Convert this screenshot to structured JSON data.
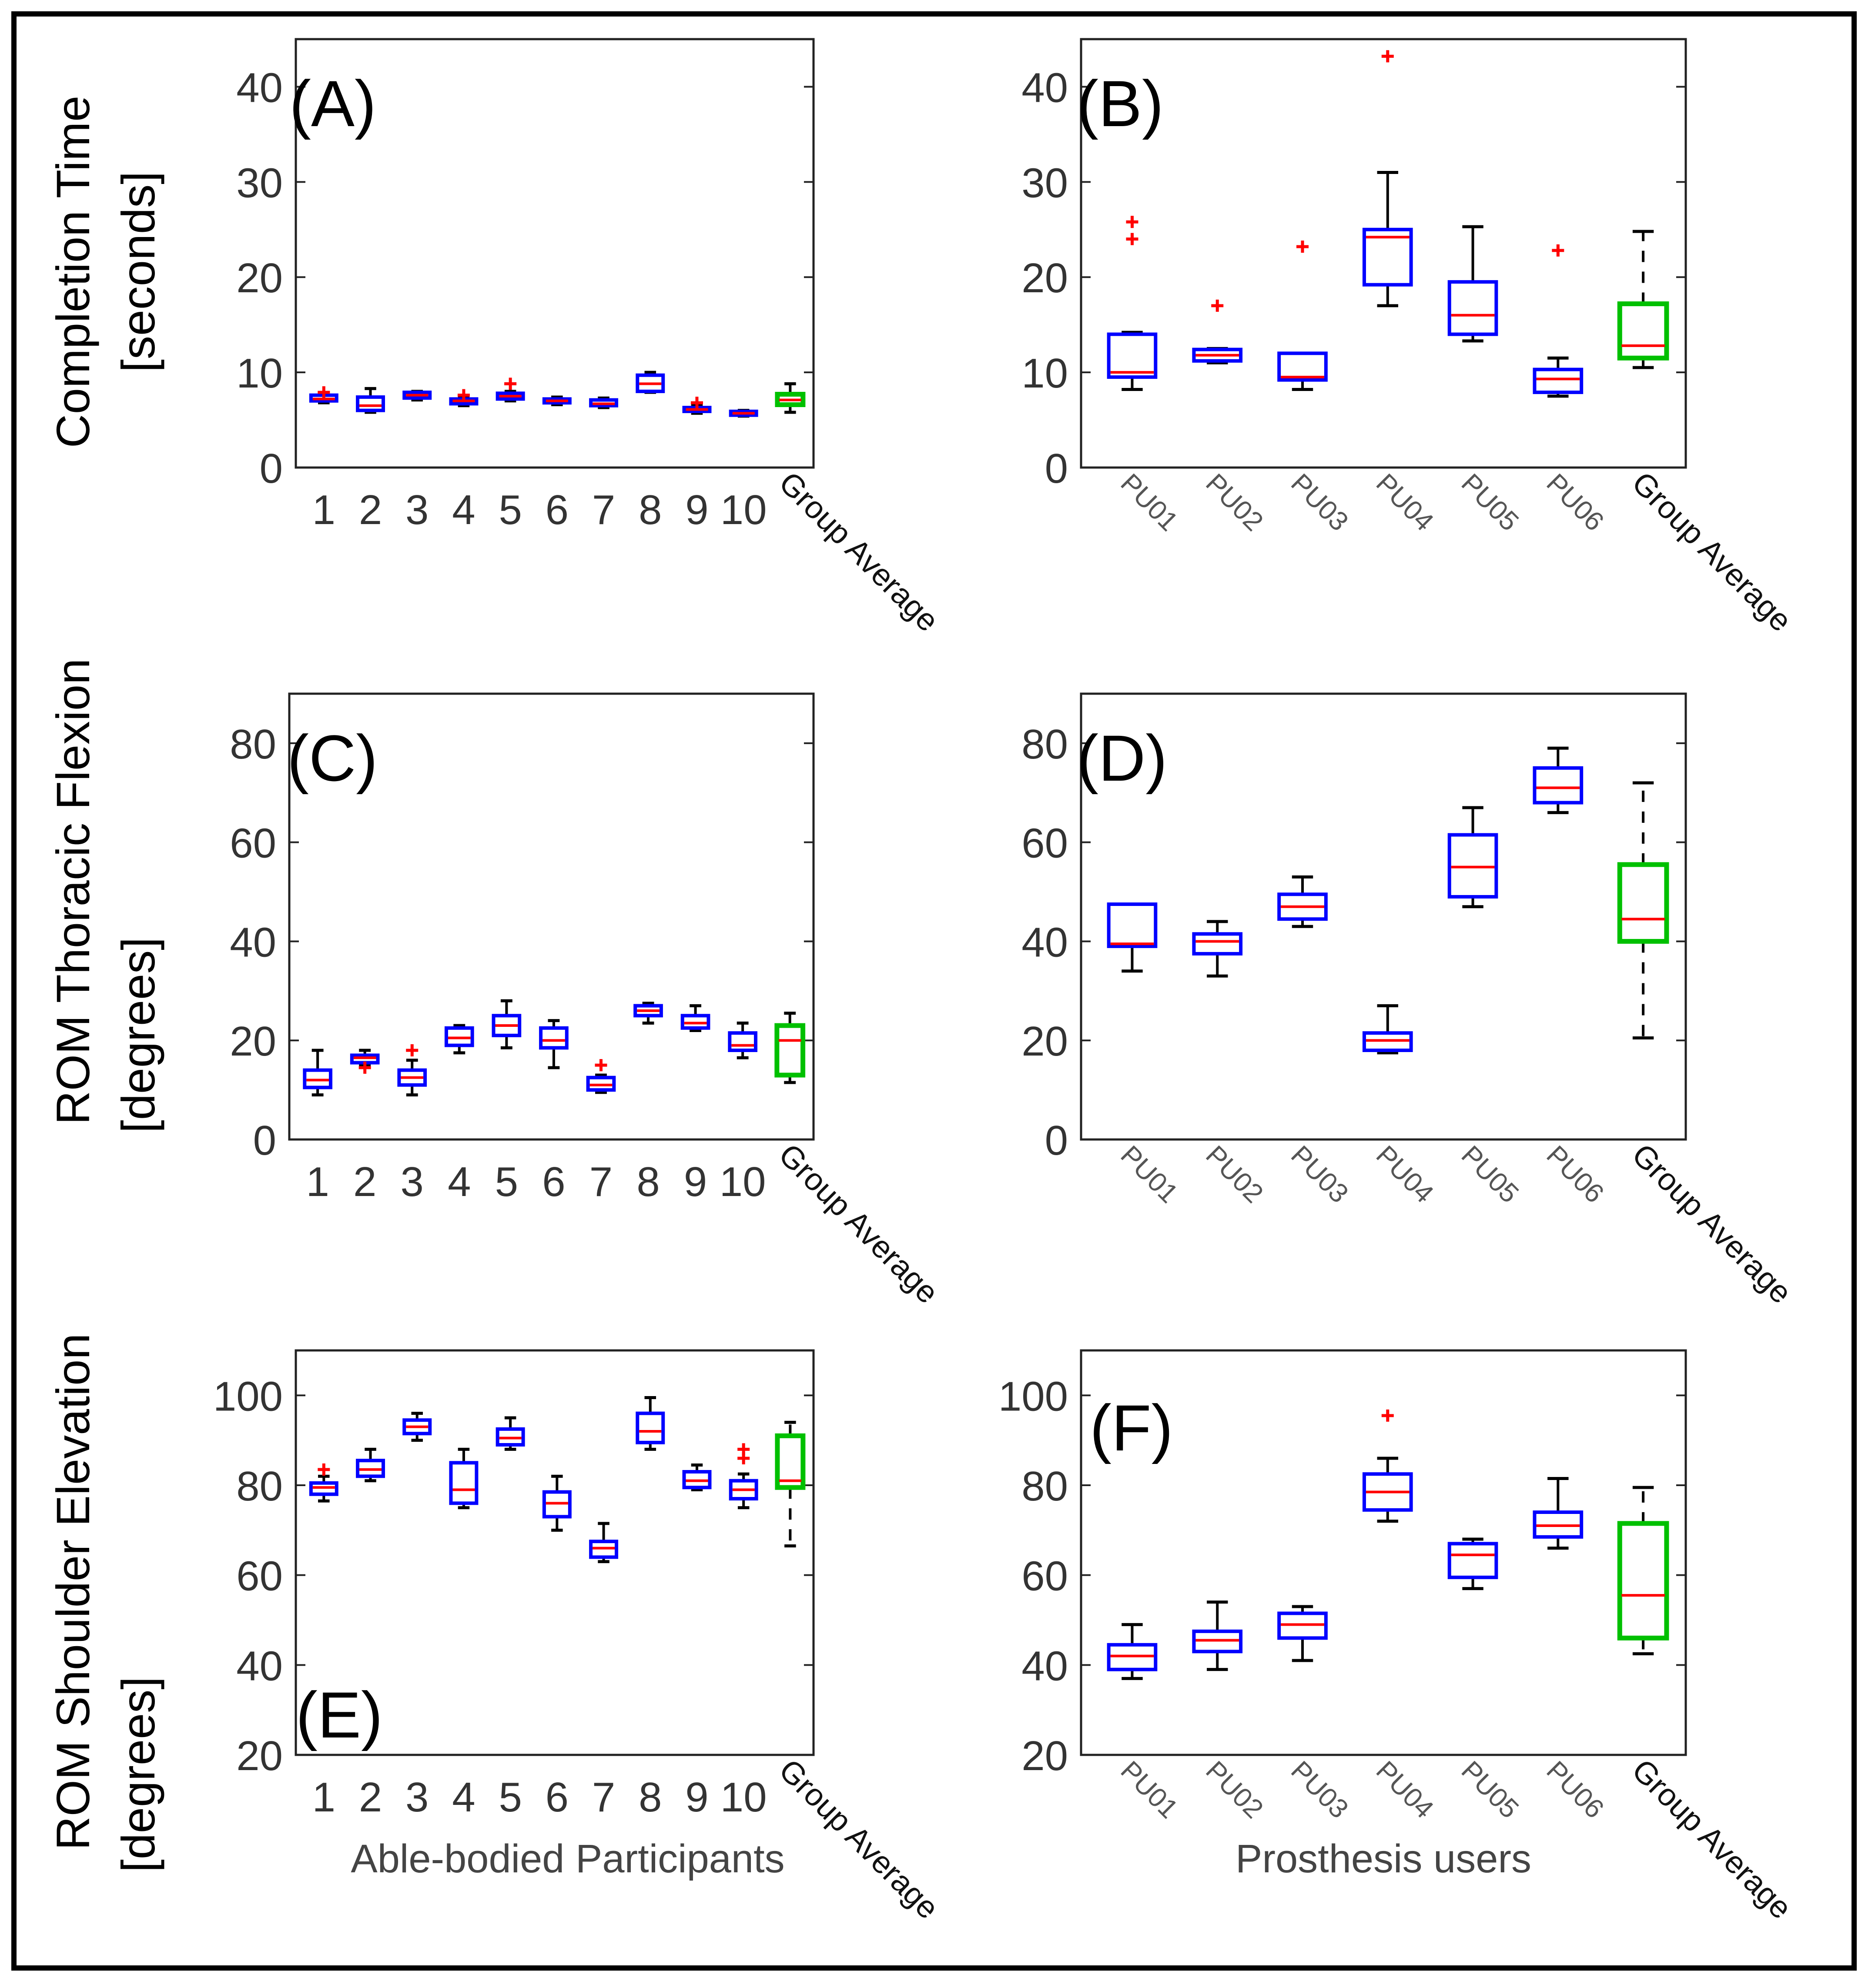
{
  "ylabels": {
    "row1": [
      "Completion Time",
      "[seconds]"
    ],
    "row2": [
      "ROM Thoracic Flexion",
      "[degrees]"
    ],
    "row3": [
      "ROM Shoulder Elevation",
      "[degrees]"
    ]
  },
  "xlabels": {
    "left": "Able-bodied Participants",
    "right": "Prosthesis users"
  },
  "colors": {
    "box": "#0000ff",
    "median": "#ff0000",
    "group_box": "#00c000",
    "whisker": "#000000",
    "outlier": "#ff0000"
  },
  "chart_data": [
    {
      "panel": "(A)",
      "type": "box",
      "ylim": [
        0,
        45
      ],
      "yticks": [
        0,
        10,
        20,
        30,
        40
      ],
      "categories": [
        "1",
        "2",
        "3",
        "4",
        "5",
        "6",
        "7",
        "8",
        "9",
        "10",
        "Group Average"
      ],
      "boxes": [
        {
          "wlo": 6.8,
          "q1": 7.0,
          "med": 7.2,
          "q3": 7.6,
          "whi": 7.8,
          "out": [
            7.9
          ]
        },
        {
          "wlo": 5.8,
          "q1": 6.0,
          "med": 6.5,
          "q3": 7.4,
          "whi": 8.3,
          "out": []
        },
        {
          "wlo": 7.1,
          "q1": 7.3,
          "med": 7.6,
          "q3": 7.9,
          "whi": 8.0,
          "out": []
        },
        {
          "wlo": 6.5,
          "q1": 6.7,
          "med": 7.0,
          "q3": 7.2,
          "whi": 7.4,
          "out": [
            7.6
          ]
        },
        {
          "wlo": 7.0,
          "q1": 7.2,
          "med": 7.5,
          "q3": 7.8,
          "whi": 8.0,
          "out": [
            8.8
          ]
        },
        {
          "wlo": 6.6,
          "q1": 6.8,
          "med": 7.0,
          "q3": 7.2,
          "whi": 7.4,
          "out": []
        },
        {
          "wlo": 6.3,
          "q1": 6.5,
          "med": 6.7,
          "q3": 7.1,
          "whi": 7.3,
          "out": []
        },
        {
          "wlo": 7.9,
          "q1": 8.0,
          "med": 8.8,
          "q3": 9.7,
          "whi": 10.0,
          "out": []
        },
        {
          "wlo": 5.7,
          "q1": 5.9,
          "med": 6.1,
          "q3": 6.3,
          "whi": 6.5,
          "out": [
            6.8
          ]
        },
        {
          "wlo": 5.4,
          "q1": 5.5,
          "med": 5.7,
          "q3": 5.9,
          "whi": 6.0,
          "out": []
        },
        {
          "wlo": 5.8,
          "q1": 6.6,
          "med": 7.1,
          "q3": 7.7,
          "whi": 8.8,
          "out": [],
          "group": true
        }
      ]
    },
    {
      "panel": "(B)",
      "type": "box",
      "ylim": [
        0,
        45
      ],
      "yticks": [
        0,
        10,
        20,
        30,
        40
      ],
      "categories": [
        "PU01",
        "PU02",
        "PU03",
        "PU04",
        "PU05",
        "PU06",
        "Group Average"
      ],
      "boxes": [
        {
          "wlo": 8.2,
          "q1": 9.5,
          "med": 10.0,
          "q3": 14.0,
          "whi": 14.2,
          "out": [
            24.0,
            25.8
          ]
        },
        {
          "wlo": 11.0,
          "q1": 11.2,
          "med": 11.8,
          "q3": 12.4,
          "whi": 12.5,
          "out": [
            17.0
          ]
        },
        {
          "wlo": 8.2,
          "q1": 9.2,
          "med": 9.5,
          "q3": 12.0,
          "whi": 12.0,
          "out": [
            23.2
          ]
        },
        {
          "wlo": 17.0,
          "q1": 19.2,
          "med": 24.2,
          "q3": 25.0,
          "whi": 31.0,
          "out": [
            43.2
          ]
        },
        {
          "wlo": 13.3,
          "q1": 14.0,
          "med": 16.0,
          "q3": 19.5,
          "whi": 25.3,
          "out": []
        },
        {
          "wlo": 7.5,
          "q1": 7.9,
          "med": 9.3,
          "q3": 10.3,
          "whi": 11.5,
          "out": [
            22.8
          ]
        },
        {
          "wlo": 10.5,
          "q1": 11.5,
          "med": 12.8,
          "q3": 17.2,
          "whi": 24.8,
          "out": [],
          "group": true
        }
      ]
    },
    {
      "panel": "(C)",
      "type": "box",
      "ylim": [
        0,
        90
      ],
      "yticks": [
        0,
        20,
        40,
        60,
        80
      ],
      "categories": [
        "1",
        "2",
        "3",
        "4",
        "5",
        "6",
        "7",
        "8",
        "9",
        "10",
        "Group Average"
      ],
      "boxes": [
        {
          "wlo": 9.0,
          "q1": 10.5,
          "med": 12.0,
          "q3": 14.0,
          "whi": 18.0,
          "out": []
        },
        {
          "wlo": 15.0,
          "q1": 15.5,
          "med": 16.5,
          "q3": 17.0,
          "whi": 18.0,
          "out": [
            14.5
          ]
        },
        {
          "wlo": 9.0,
          "q1": 11.0,
          "med": 12.5,
          "q3": 14.0,
          "whi": 16.0,
          "out": [
            18.0
          ]
        },
        {
          "wlo": 17.5,
          "q1": 19.0,
          "med": 20.5,
          "q3": 22.5,
          "whi": 23.0,
          "out": []
        },
        {
          "wlo": 18.5,
          "q1": 21.0,
          "med": 23.0,
          "q3": 25.0,
          "whi": 28.0,
          "out": []
        },
        {
          "wlo": 14.5,
          "q1": 18.5,
          "med": 20.0,
          "q3": 22.5,
          "whi": 24.0,
          "out": []
        },
        {
          "wlo": 9.5,
          "q1": 10.0,
          "med": 11.0,
          "q3": 12.5,
          "whi": 13.0,
          "out": [
            15.0
          ]
        },
        {
          "wlo": 23.5,
          "q1": 25.0,
          "med": 26.0,
          "q3": 27.0,
          "whi": 27.5,
          "out": []
        },
        {
          "wlo": 22.0,
          "q1": 22.5,
          "med": 23.5,
          "q3": 25.0,
          "whi": 27.0,
          "out": []
        },
        {
          "wlo": 16.5,
          "q1": 18.0,
          "med": 19.0,
          "q3": 21.5,
          "whi": 23.5,
          "out": []
        },
        {
          "wlo": 11.5,
          "q1": 13.0,
          "med": 20.0,
          "q3": 23.0,
          "whi": 25.5,
          "out": [],
          "group": true
        }
      ]
    },
    {
      "panel": "(D)",
      "type": "box",
      "ylim": [
        0,
        90
      ],
      "yticks": [
        0,
        20,
        40,
        60,
        80
      ],
      "categories": [
        "PU01",
        "PU02",
        "PU03",
        "PU04",
        "PU05",
        "PU06",
        "Group Average"
      ],
      "boxes": [
        {
          "wlo": 34.0,
          "q1": 39.0,
          "med": 39.5,
          "q3": 47.5,
          "whi": 47.5,
          "out": []
        },
        {
          "wlo": 33.0,
          "q1": 37.5,
          "med": 40.0,
          "q3": 41.5,
          "whi": 44.0,
          "out": []
        },
        {
          "wlo": 43.0,
          "q1": 44.5,
          "med": 47.0,
          "q3": 49.5,
          "whi": 53.0,
          "out": []
        },
        {
          "wlo": 17.5,
          "q1": 18.0,
          "med": 20.0,
          "q3": 21.5,
          "whi": 27.0,
          "out": []
        },
        {
          "wlo": 47.0,
          "q1": 49.0,
          "med": 55.0,
          "q3": 61.5,
          "whi": 67.0,
          "out": []
        },
        {
          "wlo": 66.0,
          "q1": 68.0,
          "med": 71.0,
          "q3": 75.0,
          "whi": 79.0,
          "out": []
        },
        {
          "wlo": 20.5,
          "q1": 40.0,
          "med": 44.5,
          "q3": 55.5,
          "whi": 72.0,
          "out": [],
          "group": true
        }
      ]
    },
    {
      "panel": "(E)",
      "type": "box",
      "ylim": [
        20,
        110
      ],
      "yticks": [
        20,
        40,
        60,
        80,
        100
      ],
      "categories": [
        "1",
        "2",
        "3",
        "4",
        "5",
        "6",
        "7",
        "8",
        "9",
        "10",
        "Group Average"
      ],
      "boxes": [
        {
          "wlo": 76.5,
          "q1": 78.0,
          "med": 79.5,
          "q3": 80.5,
          "whi": 82.0,
          "out": [
            83.5
          ]
        },
        {
          "wlo": 81.0,
          "q1": 82.0,
          "med": 83.5,
          "q3": 85.5,
          "whi": 88.0,
          "out": []
        },
        {
          "wlo": 90.0,
          "q1": 91.5,
          "med": 93.0,
          "q3": 94.5,
          "whi": 96.0,
          "out": []
        },
        {
          "wlo": 75.0,
          "q1": 76.0,
          "med": 79.0,
          "q3": 85.0,
          "whi": 88.0,
          "out": []
        },
        {
          "wlo": 88.0,
          "q1": 89.0,
          "med": 90.5,
          "q3": 92.5,
          "whi": 95.0,
          "out": []
        },
        {
          "wlo": 70.0,
          "q1": 73.0,
          "med": 76.0,
          "q3": 78.5,
          "whi": 82.0,
          "out": []
        },
        {
          "wlo": 63.0,
          "q1": 64.0,
          "med": 66.0,
          "q3": 67.5,
          "whi": 71.5,
          "out": []
        },
        {
          "wlo": 88.0,
          "q1": 89.5,
          "med": 92.0,
          "q3": 96.0,
          "whi": 99.5,
          "out": []
        },
        {
          "wlo": 79.0,
          "q1": 79.5,
          "med": 81.0,
          "q3": 83.0,
          "whi": 84.5,
          "out": []
        },
        {
          "wlo": 75.0,
          "q1": 77.0,
          "med": 79.0,
          "q3": 81.0,
          "whi": 82.5,
          "out": [
            86.0,
            88.0
          ]
        },
        {
          "wlo": 66.5,
          "q1": 79.5,
          "med": 81.0,
          "q3": 91.0,
          "whi": 94.0,
          "out": [],
          "group": true
        }
      ]
    },
    {
      "panel": "(F)",
      "type": "box",
      "ylim": [
        20,
        110
      ],
      "yticks": [
        20,
        40,
        60,
        80,
        100
      ],
      "categories": [
        "PU01",
        "PU02",
        "PU03",
        "PU04",
        "PU05",
        "PU06",
        "Group Average"
      ],
      "boxes": [
        {
          "wlo": 37.0,
          "q1": 39.0,
          "med": 42.0,
          "q3": 44.5,
          "whi": 49.0,
          "out": []
        },
        {
          "wlo": 39.0,
          "q1": 43.0,
          "med": 45.5,
          "q3": 47.5,
          "whi": 54.0,
          "out": []
        },
        {
          "wlo": 41.0,
          "q1": 46.0,
          "med": 49.0,
          "q3": 51.5,
          "whi": 53.0,
          "out": []
        },
        {
          "wlo": 72.0,
          "q1": 74.5,
          "med": 78.5,
          "q3": 82.5,
          "whi": 86.0,
          "out": [
            95.5
          ]
        },
        {
          "wlo": 57.0,
          "q1": 59.5,
          "med": 64.5,
          "q3": 67.0,
          "whi": 68.0,
          "out": []
        },
        {
          "wlo": 66.0,
          "q1": 68.5,
          "med": 71.0,
          "q3": 74.0,
          "whi": 81.5,
          "out": []
        },
        {
          "wlo": 42.5,
          "q1": 46.0,
          "med": 55.5,
          "q3": 71.5,
          "whi": 79.5,
          "out": [],
          "group": true
        }
      ]
    }
  ]
}
